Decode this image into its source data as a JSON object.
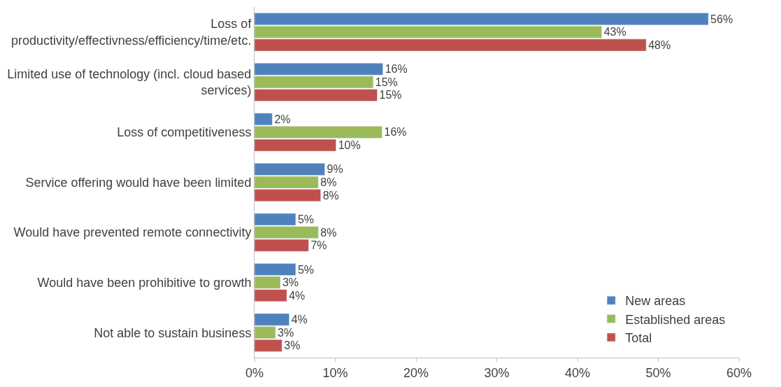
{
  "chart_data": {
    "type": "bar",
    "orientation": "horizontal",
    "categories": [
      "Loss of\nproductivity/effectivness/efficiency/time/etc.",
      "Limited use of technology (incl. cloud based\nservices)",
      "Loss of competitiveness",
      "Service offering would have been limited",
      "Would have prevented remote connectivity",
      "Would have been prohibitive to growth",
      "Not able to sustain business"
    ],
    "series": [
      {
        "name": "New areas",
        "color": "#4f81bd",
        "values": [
          56.2,
          15.9,
          2.2,
          8.7,
          5.1,
          5.1,
          4.3
        ],
        "value_labels": [
          "56%",
          "16%",
          "2%",
          "9%",
          "5%",
          "5%",
          "4%"
        ]
      },
      {
        "name": "Established areas",
        "color": "#9bbb59",
        "values": [
          43.0,
          14.7,
          15.8,
          7.9,
          7.9,
          3.2,
          2.6
        ],
        "value_labels": [
          "43%",
          "15%",
          "16%",
          "8%",
          "8%",
          "3%",
          "3%"
        ]
      },
      {
        "name": "Total",
        "color": "#c0504d",
        "values": [
          48.5,
          15.2,
          10.1,
          8.2,
          6.7,
          4.0,
          3.4
        ],
        "value_labels": [
          "48%",
          "15%",
          "10%",
          "8%",
          "7%",
          "4%",
          "3%"
        ]
      }
    ],
    "xlim": [
      0,
      60
    ],
    "xticks": [
      {
        "value": 0,
        "label": "0%"
      },
      {
        "value": 10,
        "label": "10%"
      },
      {
        "value": 20,
        "label": "20%"
      },
      {
        "value": 30,
        "label": "30%"
      },
      {
        "value": 40,
        "label": "40%"
      },
      {
        "value": 50,
        "label": "50%"
      },
      {
        "value": 60,
        "label": "60%"
      }
    ],
    "legend": "bottom right"
  }
}
